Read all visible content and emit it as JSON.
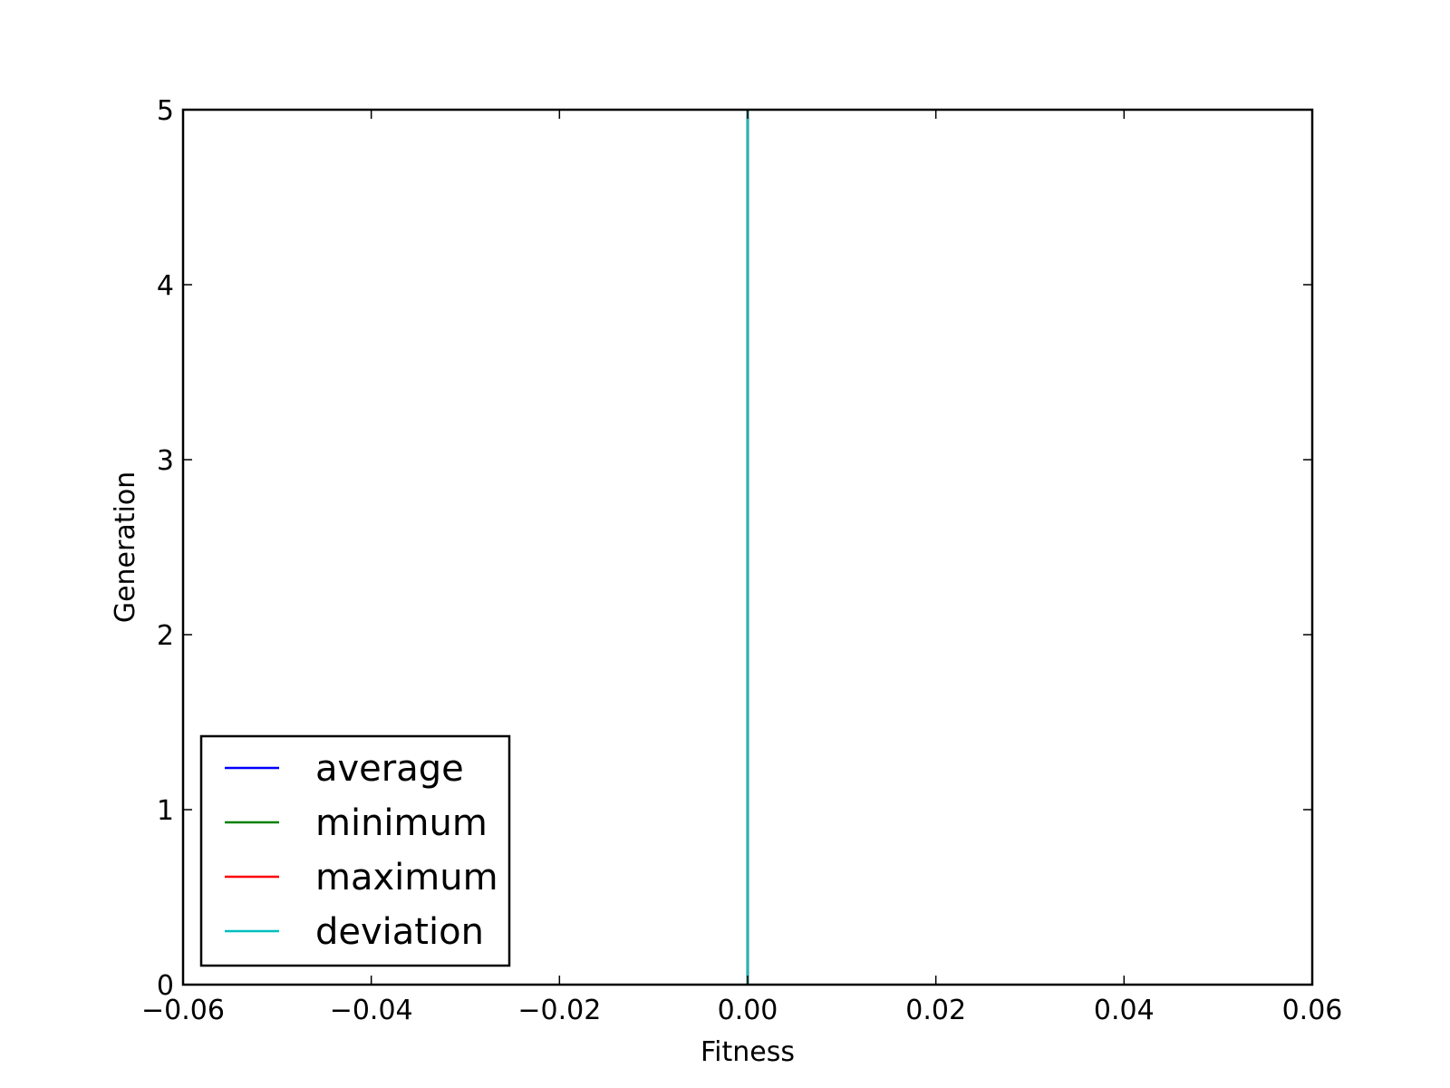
{
  "chart_data": {
    "type": "line",
    "title": "",
    "xlabel": "Fitness",
    "ylabel": "Generation",
    "xlim": [
      -0.06,
      0.06
    ],
    "ylim": [
      0,
      5
    ],
    "xticks": [
      "−0.06",
      "−0.04",
      "−0.02",
      "0.00",
      "0.02",
      "0.04",
      "0.06"
    ],
    "xtick_values": [
      -0.06,
      -0.04,
      -0.02,
      0.0,
      0.02,
      0.04,
      0.06
    ],
    "yticks": [
      "0",
      "1",
      "2",
      "3",
      "4",
      "5"
    ],
    "ytick_values": [
      0,
      1,
      2,
      3,
      4,
      5
    ],
    "grid": false,
    "legend_position": "lower-left",
    "series": [
      {
        "name": "average",
        "color": "#0000ff",
        "x": [
          0,
          0,
          0,
          0,
          0,
          0
        ],
        "y": [
          0,
          1,
          2,
          3,
          4,
          5
        ]
      },
      {
        "name": "minimum",
        "color": "#008000",
        "x": [
          0,
          0,
          0,
          0,
          0,
          0
        ],
        "y": [
          0,
          1,
          2,
          3,
          4,
          5
        ]
      },
      {
        "name": "maximum",
        "color": "#ff0000",
        "x": [
          0,
          0,
          0,
          0,
          0,
          0
        ],
        "y": [
          0,
          1,
          2,
          3,
          4,
          5
        ]
      },
      {
        "name": "deviation",
        "color": "#00bfbf",
        "x": [
          0,
          0,
          0,
          0,
          0,
          0
        ],
        "y": [
          0,
          1,
          2,
          3,
          4,
          5
        ]
      }
    ]
  }
}
